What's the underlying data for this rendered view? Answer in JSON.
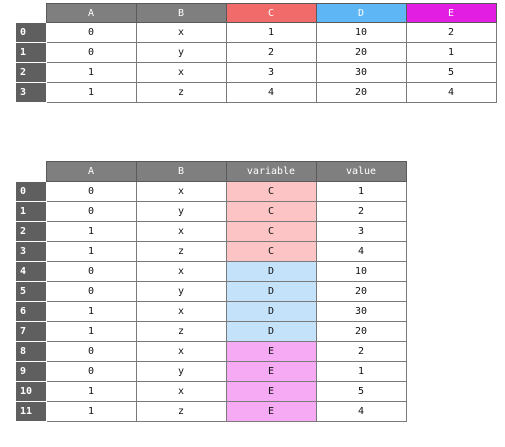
{
  "top_table": {
    "columns": [
      {
        "label": "A",
        "color": "#7f7f7f"
      },
      {
        "label": "B",
        "color": "#7f7f7f"
      },
      {
        "label": "C",
        "color": "#f26b6b"
      },
      {
        "label": "D",
        "color": "#5eb6f4"
      },
      {
        "label": "E",
        "color": "#e21ee2"
      }
    ],
    "rows": [
      {
        "index": "0",
        "cells": [
          "0",
          "x",
          "1",
          "10",
          "2"
        ]
      },
      {
        "index": "1",
        "cells": [
          "0",
          "y",
          "2",
          "20",
          "1"
        ]
      },
      {
        "index": "2",
        "cells": [
          "1",
          "x",
          "3",
          "30",
          "5"
        ]
      },
      {
        "index": "3",
        "cells": [
          "1",
          "z",
          "4",
          "20",
          "4"
        ]
      }
    ]
  },
  "bottom_table": {
    "columns": [
      {
        "label": "A"
      },
      {
        "label": "B"
      },
      {
        "label": "variable"
      },
      {
        "label": "value"
      }
    ],
    "variable_colors": {
      "C": "#fcc4c4",
      "D": "#c4e3fb",
      "E": "#f6aaf3"
    },
    "rows": [
      {
        "index": "0",
        "cells": [
          "0",
          "x",
          "C",
          "1"
        ]
      },
      {
        "index": "1",
        "cells": [
          "0",
          "y",
          "C",
          "2"
        ]
      },
      {
        "index": "2",
        "cells": [
          "1",
          "x",
          "C",
          "3"
        ]
      },
      {
        "index": "3",
        "cells": [
          "1",
          "z",
          "C",
          "4"
        ]
      },
      {
        "index": "4",
        "cells": [
          "0",
          "x",
          "D",
          "10"
        ]
      },
      {
        "index": "5",
        "cells": [
          "0",
          "y",
          "D",
          "20"
        ]
      },
      {
        "index": "6",
        "cells": [
          "1",
          "x",
          "D",
          "30"
        ]
      },
      {
        "index": "7",
        "cells": [
          "1",
          "z",
          "D",
          "20"
        ]
      },
      {
        "index": "8",
        "cells": [
          "0",
          "x",
          "E",
          "2"
        ]
      },
      {
        "index": "9",
        "cells": [
          "0",
          "y",
          "E",
          "1"
        ]
      },
      {
        "index": "10",
        "cells": [
          "1",
          "x",
          "E",
          "5"
        ]
      },
      {
        "index": "11",
        "cells": [
          "1",
          "z",
          "E",
          "4"
        ]
      }
    ]
  }
}
